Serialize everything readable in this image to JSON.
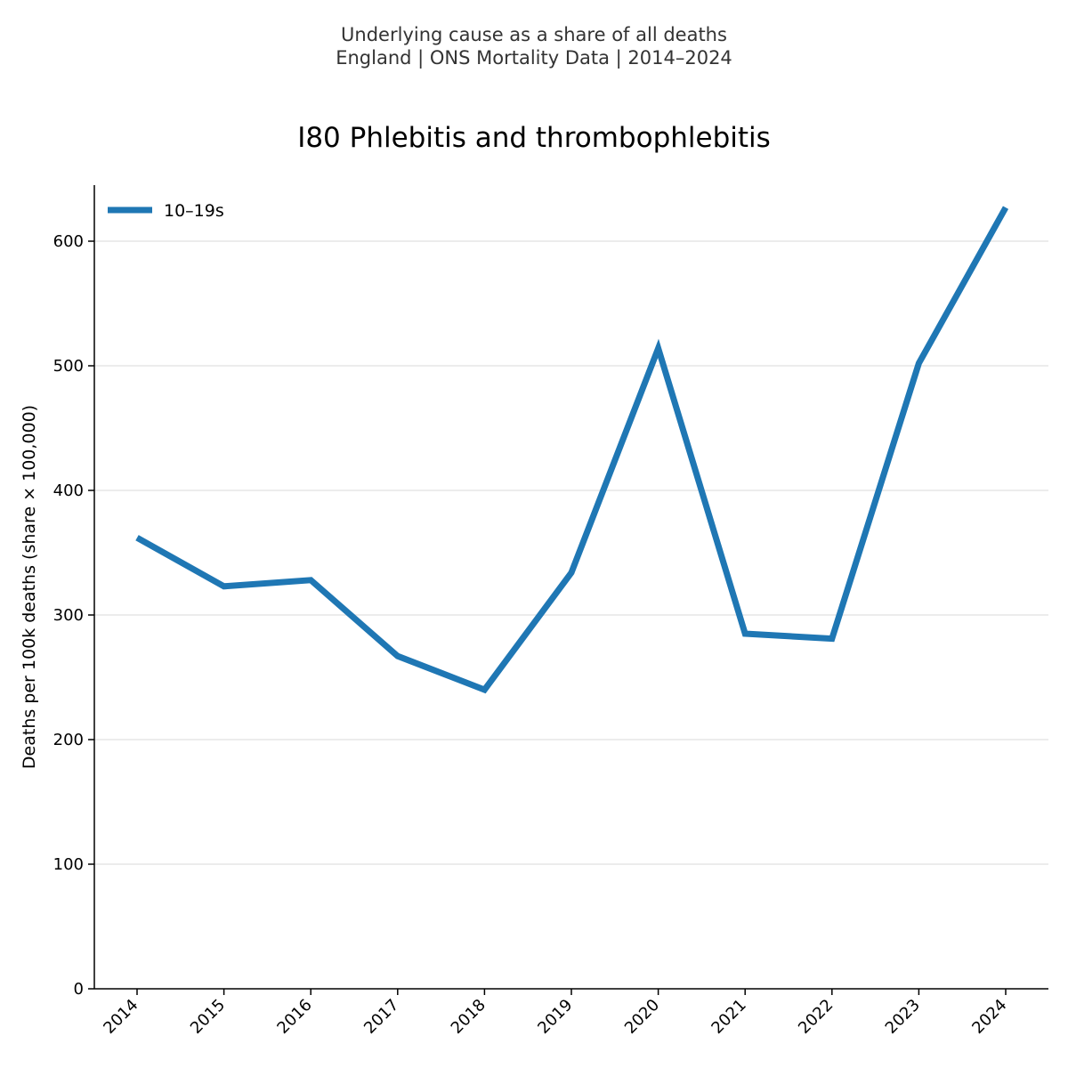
{
  "header": {
    "line1": "Underlying cause as a share of all deaths",
    "line2": "England | ONS Mortality Data | 2014–2024"
  },
  "colors": {
    "series": "#1f77b4",
    "grid": "#e6e6e6",
    "axis": "#000000"
  },
  "chart_data": {
    "type": "line",
    "title": "I80 Phlebitis and thrombophlebitis",
    "xlabel": "",
    "ylabel": "Deaths per 100k deaths (share × 100,000)",
    "x": [
      "2014",
      "2015",
      "2016",
      "2017",
      "2018",
      "2019",
      "2020",
      "2021",
      "2022",
      "2023",
      "2024"
    ],
    "series": [
      {
        "name": "10–19s",
        "values": [
          362,
          323,
          328,
          267,
          240,
          334,
          514,
          285,
          281,
          502,
          627
        ]
      }
    ],
    "ylim": [
      0,
      645
    ],
    "yticks": [
      0,
      100,
      200,
      300,
      400,
      500,
      600
    ],
    "grid": "horizontal",
    "legend": "top-left"
  }
}
